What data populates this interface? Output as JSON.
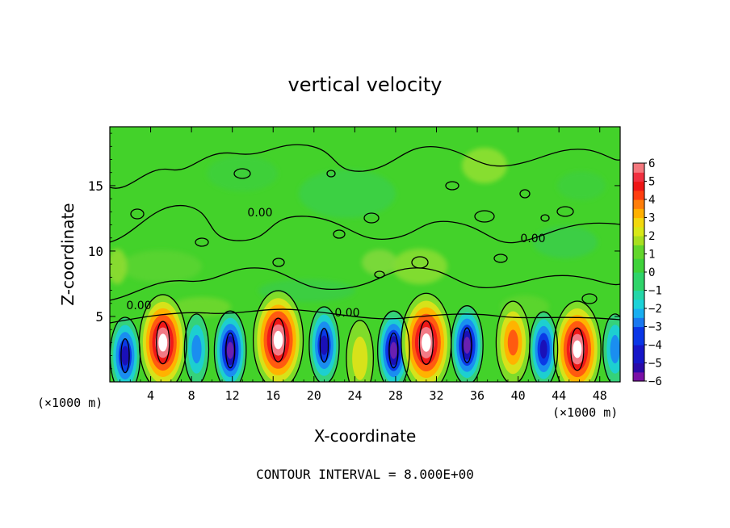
{
  "chart_data": {
    "type": "heatmap",
    "title": "vertical velocity",
    "xlabel": "X-coordinate",
    "ylabel": "Z-coordinate",
    "x_unit_left": "(×1000 m)",
    "x_unit_right": "(×1000 m)",
    "xlim": [
      0,
      50
    ],
    "ylim": [
      0,
      19.5
    ],
    "x_ticks": [
      4,
      8,
      12,
      16,
      20,
      24,
      28,
      32,
      36,
      40,
      44,
      48
    ],
    "y_ticks": [
      5,
      10,
      15
    ],
    "contour_label": "0.00",
    "footer": "CONTOUR INTERVAL = 8.000E+00",
    "colorbar": {
      "ticks": [
        "6",
        "5",
        "4",
        "3",
        "2",
        "1",
        "0",
        "−1",
        "−2",
        "−3",
        "−4",
        "−5",
        "−6"
      ],
      "range": [
        -6,
        6
      ]
    },
    "field": {
      "cells": [
        {
          "x": 1.5,
          "z": 2.0,
          "w": -6
        },
        {
          "x": 5.2,
          "z": 3.0,
          "w": 9
        },
        {
          "x": 8.5,
          "z": 2.5,
          "w": -3
        },
        {
          "x": 11.8,
          "z": 2.4,
          "w": -7
        },
        {
          "x": 16.5,
          "z": 3.2,
          "w": 10
        },
        {
          "x": 21.0,
          "z": 2.8,
          "w": -6
        },
        {
          "x": 24.5,
          "z": 1.8,
          "w": 1.5
        },
        {
          "x": 27.8,
          "z": 2.4,
          "w": -7
        },
        {
          "x": 31.0,
          "z": 3.0,
          "w": 10
        },
        {
          "x": 35.0,
          "z": 2.8,
          "w": -7
        },
        {
          "x": 39.5,
          "z": 3.0,
          "w": 4
        },
        {
          "x": 42.5,
          "z": 2.5,
          "w": -5
        },
        {
          "x": 45.8,
          "z": 2.5,
          "w": 9
        },
        {
          "x": 49.5,
          "z": 2.5,
          "w": -3
        }
      ]
    }
  }
}
